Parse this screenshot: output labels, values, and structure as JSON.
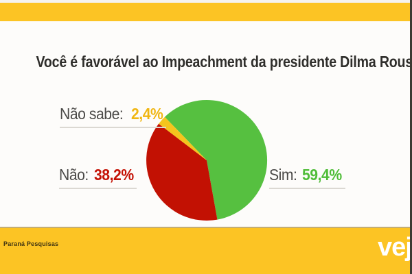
{
  "frame": {
    "background_color": "#fcc424",
    "top_strip_color": "#f5f3ef",
    "card_color": "#fdfcfa",
    "right_edge_color": "#3b3a33"
  },
  "chart_data": {
    "type": "pie",
    "title": "Você é favorável ao Impeachment da presidente Dilma Rousseff?",
    "unit": "%",
    "start_angle_deg": -44,
    "legend_position": "callout-labels",
    "slices": [
      {
        "label": "Sim",
        "value": 59.4,
        "display_value": "59,4%",
        "callout_prefix": "Sim:",
        "color": "#56c040",
        "value_text_color": "#4fbd38"
      },
      {
        "label": "Não",
        "value": 38.2,
        "display_value": "38,2%",
        "callout_prefix": "Não:",
        "color": "#c21103",
        "value_text_color": "#c41104"
      },
      {
        "label": "Não sabe",
        "value": 2.4,
        "display_value": "2,4%",
        "callout_prefix": "Não sabe:",
        "color": "#f5c41d",
        "value_text_color": "#f0b612"
      }
    ]
  },
  "footer": {
    "source": "Paraná Pesquisas",
    "logo_text": "veja"
  }
}
